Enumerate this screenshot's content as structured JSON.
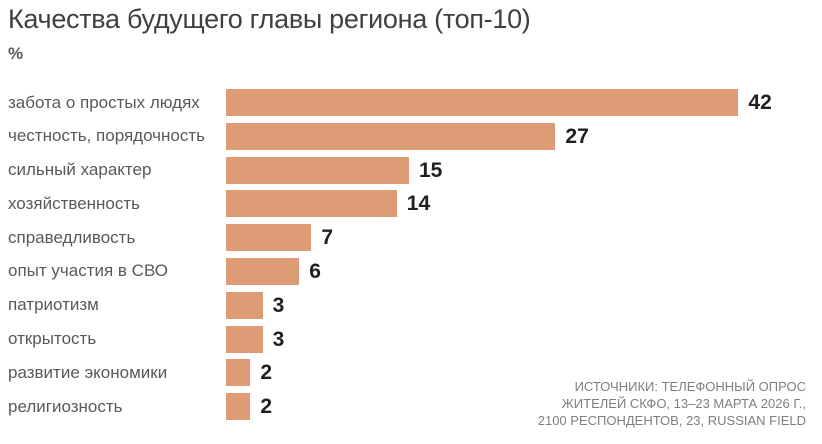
{
  "title": "Качества будущего главы региона (топ-10)",
  "unit_label": "%",
  "colors": {
    "bar": "#de9c76",
    "title_text": "#404040",
    "category_text": "#595959",
    "value_text": "#1f1f1f",
    "source_text": "#7f7f7f"
  },
  "chart_data": {
    "type": "bar",
    "orientation": "horizontal",
    "title": "Качества будущего главы региона (топ-10)",
    "xlabel": "",
    "ylabel": "%",
    "xlim": [
      0,
      45
    ],
    "grid": false,
    "legend": "none",
    "value_labels": "at bar end",
    "categories": [
      "забота о простых людях",
      "честность, порядочность",
      "сильный характер",
      "хозяйственность",
      "справедливость",
      "опыт участия в СВО",
      "патриотизм",
      "открытость",
      "развитие экономики",
      "религиозность"
    ],
    "values": [
      42,
      27,
      15,
      14,
      7,
      6,
      3,
      3,
      2,
      2
    ]
  },
  "source": {
    "lines": [
      "ИСТОЧНИКИ: ТЕЛЕФОННЫЙ ОПРОС",
      "ЖИТЕЛЕЙ СКФО, 13–23 МАРТА 2026 Г.,",
      "2100 РЕСПОНДЕНТОВ, 23, RUSSIAN FIELD"
    ]
  }
}
